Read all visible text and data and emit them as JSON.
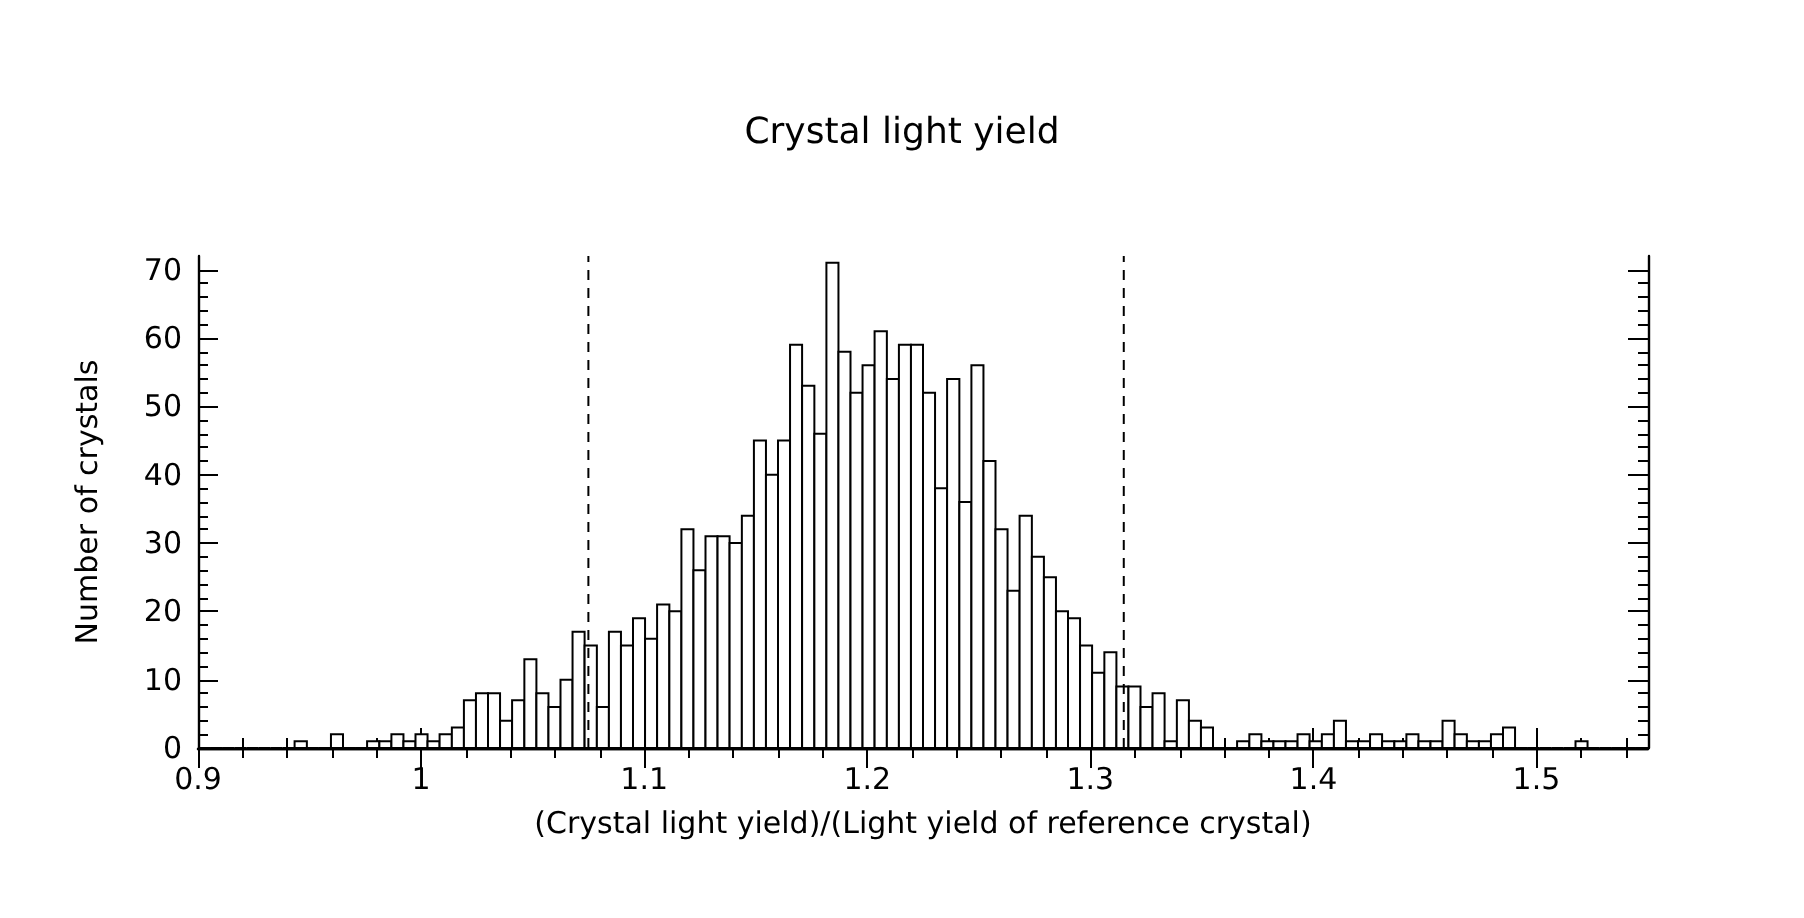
{
  "chart_data": {
    "type": "histogram",
    "title": "Crystal light yield",
    "xlabel": "(Crystal light yield)/(Light yield of reference crystal)",
    "ylabel": "Number of crystals",
    "color": "#000000",
    "bins": [
      0.9,
      0.9054,
      0.9108,
      0.9163,
      0.9217,
      0.9271,
      0.9325,
      0.9379,
      0.9433,
      0.9488,
      0.9542,
      0.9596,
      0.965,
      0.9704,
      0.9758,
      0.9813,
      0.9867,
      0.9921,
      0.9975,
      1.0029,
      1.0083,
      1.0138,
      1.0192,
      1.0246,
      1.03,
      1.0354,
      1.0408,
      1.0463,
      1.0517,
      1.0571,
      1.0625,
      1.0679,
      1.0733,
      1.0788,
      1.0842,
      1.0896,
      1.095,
      1.1004,
      1.1058,
      1.1113,
      1.1167,
      1.1221,
      1.1275,
      1.1329,
      1.1383,
      1.1438,
      1.1492,
      1.1546,
      1.16,
      1.1654,
      1.1708,
      1.1763,
      1.1817,
      1.1871,
      1.1925,
      1.1979,
      1.2033,
      1.2088,
      1.2142,
      1.2196,
      1.225,
      1.2304,
      1.2358,
      1.2413,
      1.2467,
      1.2521,
      1.2575,
      1.2629,
      1.2683,
      1.2738,
      1.2792,
      1.2846,
      1.29,
      1.2954,
      1.3008,
      1.3063,
      1.3117,
      1.3171,
      1.3225,
      1.3279,
      1.3333,
      1.3388,
      1.3442,
      1.3496,
      1.355,
      1.3604,
      1.3658,
      1.3713,
      1.3767,
      1.3821,
      1.3875,
      1.3929,
      1.3983,
      1.4038,
      1.4092,
      1.4146,
      1.42,
      1.4254,
      1.4308,
      1.4363,
      1.4417,
      1.4471,
      1.4525,
      1.4579,
      1.4633,
      1.4688,
      1.4742,
      1.4796,
      1.485,
      1.4904,
      1.4958,
      1.5013,
      1.5067,
      1.5121,
      1.5175,
      1.5229,
      1.5283,
      1.5338,
      1.5392,
      1.5446,
      1.55
    ],
    "values": [
      0,
      0,
      0,
      0,
      0,
      0,
      0,
      0,
      1,
      0,
      0,
      2,
      0,
      0,
      1,
      1,
      2,
      1,
      2,
      1,
      2,
      3,
      7,
      8,
      8,
      4,
      7,
      13,
      8,
      6,
      10,
      17,
      15,
      6,
      17,
      15,
      19,
      16,
      21,
      20,
      32,
      26,
      31,
      31,
      30,
      34,
      45,
      40,
      45,
      59,
      53,
      46,
      71,
      58,
      52,
      56,
      61,
      54,
      59,
      59,
      52,
      38,
      54,
      36,
      56,
      42,
      32,
      23,
      34,
      28,
      25,
      20,
      19,
      15,
      11,
      14,
      9,
      9,
      6,
      8,
      1,
      7,
      4,
      3,
      0,
      0,
      1,
      2,
      1,
      1,
      1,
      2,
      1,
      2,
      4,
      1,
      1,
      2,
      1,
      1,
      2,
      1,
      1,
      4,
      2,
      1,
      1,
      2,
      3,
      0,
      0,
      0,
      0,
      0,
      1,
      0,
      0,
      0,
      0,
      0
    ],
    "xlim": [
      0.9,
      1.55
    ],
    "xticks": [
      0.9,
      1,
      1.1,
      1.2,
      1.3,
      1.4,
      1.5
    ],
    "ylim": [
      0,
      72
    ],
    "yticks": [
      0,
      10,
      20,
      30,
      40,
      50,
      60,
      70
    ],
    "ref_lines": [
      {
        "axis": "x",
        "value": 1.075,
        "line_style": "dashed"
      },
      {
        "axis": "x",
        "value": 1.315,
        "line_style": "dashed"
      }
    ],
    "grid": false
  }
}
